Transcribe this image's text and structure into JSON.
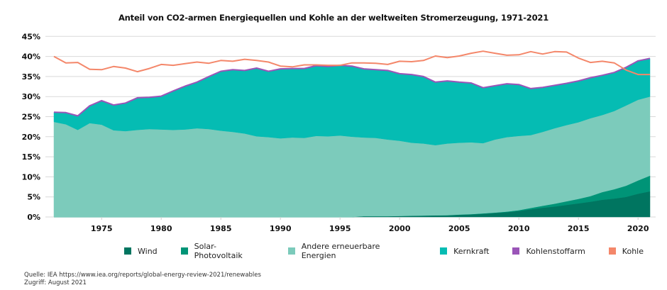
{
  "chart_data": {
    "type": "area",
    "stacked": true,
    "title": "Anteil von CO2-armen Energiequellen und Kohle an der weltweiten Stromerzeugung, 1971-2021",
    "xlabel": "",
    "ylabel": "",
    "ylim": [
      0,
      45
    ],
    "yticks": [
      "0%",
      "5%",
      "10%",
      "15%",
      "20%",
      "25%",
      "30%",
      "35%",
      "40%",
      "45%"
    ],
    "ytick_values": [
      0,
      5,
      10,
      15,
      20,
      25,
      30,
      35,
      40,
      45
    ],
    "xlim": [
      1971,
      2021
    ],
    "xticks": [
      "1975",
      "1980",
      "1985",
      "1990",
      "1995",
      "2000",
      "2005",
      "2010",
      "2015",
      "2020"
    ],
    "xtick_values": [
      1975,
      1980,
      1985,
      1990,
      1995,
      2000,
      2005,
      2010,
      2015,
      2020
    ],
    "grid": "horizontal",
    "legend_position": "bottom",
    "x": [
      1971,
      1972,
      1973,
      1974,
      1975,
      1976,
      1977,
      1978,
      1979,
      1980,
      1981,
      1982,
      1983,
      1984,
      1985,
      1986,
      1987,
      1988,
      1989,
      1990,
      1991,
      1992,
      1993,
      1994,
      1995,
      1996,
      1997,
      1998,
      1999,
      2000,
      2001,
      2002,
      2003,
      2004,
      2005,
      2006,
      2007,
      2008,
      2009,
      2010,
      2011,
      2012,
      2013,
      2014,
      2015,
      2016,
      2017,
      2018,
      2019,
      2020,
      2021
    ],
    "series": [
      {
        "name": "Wind",
        "kind": "area",
        "color": "#007560",
        "values": [
          0,
          0,
          0,
          0,
          0,
          0,
          0,
          0,
          0,
          0,
          0,
          0,
          0,
          0,
          0,
          0,
          0,
          0,
          0,
          0,
          0,
          0,
          0,
          0,
          0,
          0,
          0.2,
          0.2,
          0.2,
          0.25,
          0.3,
          0.35,
          0.4,
          0.45,
          0.55,
          0.65,
          0.8,
          1.0,
          1.2,
          1.5,
          1.9,
          2.3,
          2.6,
          3.0,
          3.4,
          3.8,
          4.3,
          4.6,
          5.0,
          5.8,
          6.4
        ]
      },
      {
        "name": "Solar-Photovoltaik",
        "kind": "area",
        "color": "#009477",
        "values": [
          0,
          0,
          0,
          0,
          0,
          0,
          0,
          0,
          0,
          0,
          0,
          0,
          0,
          0,
          0,
          0,
          0,
          0,
          0,
          0,
          0,
          0,
          0,
          0,
          0,
          0,
          0,
          0,
          0,
          0,
          0,
          0,
          0,
          0,
          0.05,
          0.05,
          0.1,
          0.1,
          0.15,
          0.2,
          0.35,
          0.5,
          0.7,
          0.9,
          1.1,
          1.4,
          1.9,
          2.3,
          2.8,
          3.3,
          3.9
        ]
      },
      {
        "name": "Andere erneuerbare Energien",
        "kind": "area",
        "color": "#7ccbbb",
        "values": [
          23.7,
          23.1,
          21.7,
          23.4,
          23.0,
          21.6,
          21.4,
          21.7,
          21.9,
          21.8,
          21.7,
          21.8,
          22.1,
          21.9,
          21.5,
          21.2,
          20.8,
          20.1,
          19.9,
          19.6,
          19.8,
          19.7,
          20.2,
          20.1,
          20.3,
          20.0,
          19.6,
          19.5,
          19.1,
          18.75,
          18.2,
          17.95,
          17.5,
          17.85,
          17.9,
          17.9,
          17.5,
          18.2,
          18.55,
          18.5,
          18.15,
          18.4,
          18.8,
          19.0,
          19.1,
          19.4,
          19.2,
          19.5,
          20.0,
          20.1,
          19.7
        ]
      },
      {
        "name": "Kernkraft",
        "kind": "area",
        "color": "#05bcb3",
        "values": [
          2.4,
          2.9,
          3.5,
          4.3,
          6.0,
          6.3,
          7.0,
          8.0,
          7.9,
          8.3,
          9.7,
          10.8,
          11.5,
          13.1,
          14.8,
          15.5,
          15.7,
          17.0,
          16.4,
          17.3,
          17.2,
          17.3,
          17.5,
          17.4,
          17.5,
          17.6,
          17.1,
          17.0,
          17.2,
          16.7,
          17.0,
          16.7,
          15.7,
          15.6,
          15.1,
          14.8,
          13.8,
          13.4,
          13.3,
          12.8,
          11.6,
          11.1,
          10.7,
          10.4,
          10.3,
          10.1,
          9.9,
          9.6,
          9.5,
          9.7,
          9.5
        ]
      },
      {
        "name": "Kohlenstoffarm",
        "kind": "line",
        "color": "#9a55b8",
        "note": "CO2-armer Gesamtanteil (obere Kante der gestapelten Flächen)",
        "values": [
          26.1,
          26.0,
          25.2,
          27.7,
          29.0,
          27.9,
          28.4,
          29.7,
          29.8,
          30.1,
          31.4,
          32.6,
          33.6,
          35.0,
          36.3,
          36.7,
          36.5,
          37.1,
          36.3,
          36.9,
          37.0,
          37.0,
          37.7,
          37.5,
          37.8,
          37.6,
          36.9,
          36.7,
          36.5,
          35.7,
          35.5,
          35.0,
          33.6,
          33.9,
          33.6,
          33.4,
          32.2,
          32.7,
          33.2,
          33.0,
          32.0,
          32.3,
          32.8,
          33.3,
          33.9,
          34.7,
          35.3,
          36.0,
          37.3,
          38.9,
          39.5
        ]
      },
      {
        "name": "Kohle",
        "kind": "line",
        "color": "#f4876a",
        "values": [
          40.0,
          38.4,
          38.5,
          36.8,
          36.7,
          37.5,
          37.1,
          36.2,
          37.0,
          38.0,
          37.8,
          38.2,
          38.6,
          38.3,
          39.0,
          38.8,
          39.3,
          39.0,
          38.6,
          37.6,
          37.4,
          37.9,
          37.9,
          37.8,
          37.8,
          38.4,
          38.4,
          38.3,
          38.0,
          38.8,
          38.7,
          39.0,
          40.1,
          39.7,
          40.1,
          40.8,
          41.3,
          40.8,
          40.3,
          40.4,
          41.2,
          40.6,
          41.2,
          41.1,
          39.6,
          38.5,
          38.8,
          38.4,
          36.6,
          35.5,
          35.5
        ]
      }
    ]
  },
  "legend": [
    {
      "label": "Wind",
      "color": "#007560"
    },
    {
      "label": "Solar-Photovoltaik",
      "color": "#009477"
    },
    {
      "label": "Andere erneuerbare Energien",
      "color": "#7ccbbb"
    },
    {
      "label": "Kernkraft",
      "color": "#05bcb3"
    },
    {
      "label": "Kohlenstoffarm",
      "color": "#9a55b8"
    },
    {
      "label": "Kohle",
      "color": "#f4876a"
    }
  ],
  "source": {
    "line1": "Quelle: IEA https://www.iea.org/reports/global-energy-review-2021/renewables",
    "line2": "Zugriff: August 2021"
  }
}
